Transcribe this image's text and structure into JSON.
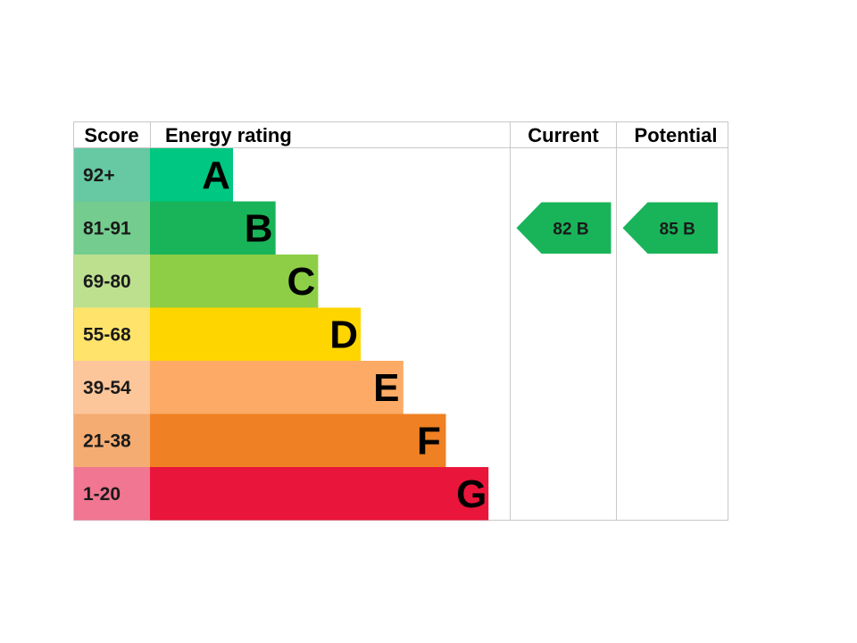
{
  "headers": {
    "score": "Score",
    "energy_rating": "Energy rating",
    "current": "Current",
    "potential": "Potential"
  },
  "chart_data": {
    "type": "bar",
    "categories": [
      "A",
      "B",
      "C",
      "D",
      "E",
      "F",
      "G"
    ],
    "bands": [
      {
        "letter": "A",
        "score_range": "92+",
        "color": "#00c781",
        "score_color": "#66c9a3"
      },
      {
        "letter": "B",
        "score_range": "81-91",
        "color": "#19b459",
        "score_color": "#74cc8e"
      },
      {
        "letter": "C",
        "score_range": "69-80",
        "color": "#8dce46",
        "score_color": "#bde08f"
      },
      {
        "letter": "D",
        "score_range": "55-68",
        "color": "#ffd500",
        "score_color": "#ffe36b"
      },
      {
        "letter": "E",
        "score_range": "39-54",
        "color": "#fcaa65",
        "score_color": "#fdc69a"
      },
      {
        "letter": "F",
        "score_range": "21-38",
        "color": "#ef8023",
        "score_color": "#f4ac72"
      },
      {
        "letter": "G",
        "score_range": "1-20",
        "color": "#e9153b",
        "score_color": "#f07691"
      }
    ],
    "current": {
      "value": 82,
      "band": "B",
      "label": "82 B",
      "color": "#19b459"
    },
    "potential": {
      "value": 85,
      "band": "B",
      "label": "85 B",
      "color": "#19b459"
    }
  }
}
